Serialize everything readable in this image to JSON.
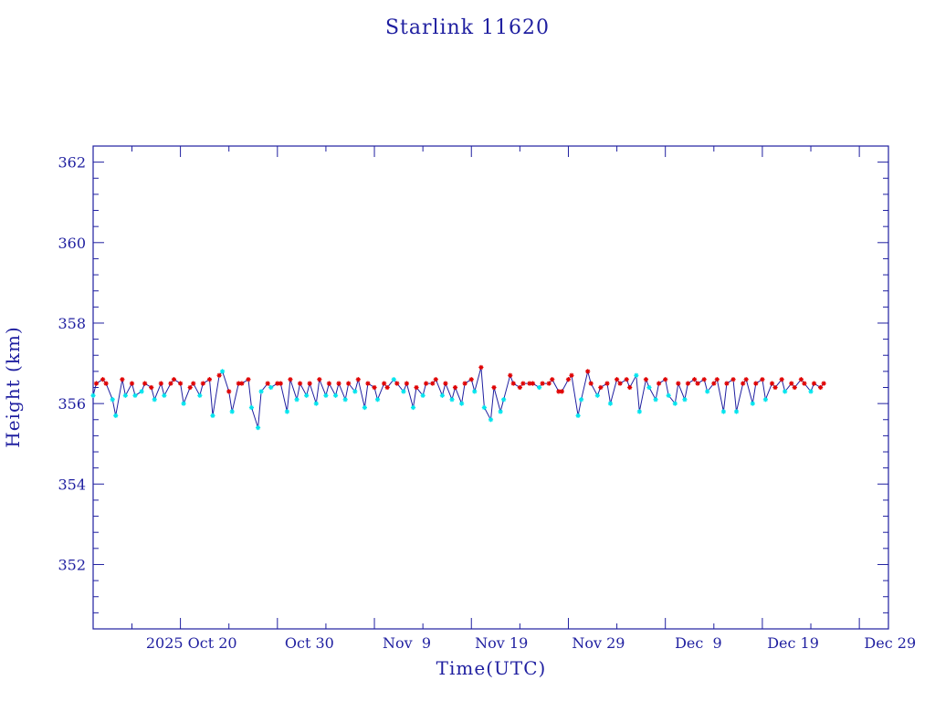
{
  "chart_data": {
    "type": "line",
    "title": "Starlink 11620",
    "xlabel": "Time(UTC)",
    "ylabel": "Height (km)",
    "x_ticks": [
      "2025 Oct 20",
      "Oct 30",
      "Nov  9",
      "Nov 19",
      "Nov 29",
      "Dec  9",
      "Dec 19",
      "Dec 29"
    ],
    "y_ticks": [
      "352",
      "354",
      "356",
      "358",
      "360",
      "362"
    ],
    "xlim": [
      "2025-10-11",
      "2026-01-01"
    ],
    "ylim": [
      350.4,
      362.4
    ],
    "colors": {
      "axis": "#1f1fa0",
      "line": "#1f1fa0",
      "red_marker": "#e00000",
      "cyan_marker": "#00e5ee"
    },
    "series": [
      {
        "marker": "star",
        "points": [
          [
            "2025-10-11",
            356.2,
            "cyan"
          ],
          [
            "2025-10-11",
            356.5,
            "red"
          ],
          [
            "2025-10-12",
            356.6,
            "red"
          ],
          [
            "2025-10-12",
            356.5,
            "red"
          ],
          [
            "2025-10-13",
            356.1,
            "cyan"
          ],
          [
            "2025-10-13",
            355.7,
            "cyan"
          ],
          [
            "2025-10-14",
            356.6,
            "red"
          ],
          [
            "2025-10-14",
            356.2,
            "cyan"
          ],
          [
            "2025-10-15",
            356.5,
            "red"
          ],
          [
            "2025-10-15",
            356.2,
            "cyan"
          ],
          [
            "2025-10-16",
            356.3,
            "cyan"
          ],
          [
            "2025-10-16",
            356.5,
            "red"
          ],
          [
            "2025-10-17",
            356.4,
            "red"
          ],
          [
            "2025-10-17",
            356.1,
            "cyan"
          ],
          [
            "2025-10-18",
            356.5,
            "red"
          ],
          [
            "2025-10-18",
            356.2,
            "cyan"
          ],
          [
            "2025-10-19",
            356.5,
            "red"
          ],
          [
            "2025-10-19",
            356.6,
            "red"
          ],
          [
            "2025-10-20",
            356.5,
            "red"
          ],
          [
            "2025-10-20",
            356.0,
            "cyan"
          ],
          [
            "2025-10-21",
            356.4,
            "red"
          ],
          [
            "2025-10-21",
            356.5,
            "red"
          ],
          [
            "2025-10-22",
            356.2,
            "cyan"
          ],
          [
            "2025-10-22",
            356.5,
            "red"
          ],
          [
            "2025-10-23",
            356.6,
            "red"
          ],
          [
            "2025-10-23",
            355.7,
            "cyan"
          ],
          [
            "2025-10-24",
            356.7,
            "red"
          ],
          [
            "2025-10-24",
            356.8,
            "cyan"
          ],
          [
            "2025-10-25",
            356.3,
            "red"
          ],
          [
            "2025-10-25",
            355.8,
            "cyan"
          ],
          [
            "2025-10-26",
            356.5,
            "red"
          ],
          [
            "2025-10-26",
            356.5,
            "red"
          ],
          [
            "2025-10-27",
            356.6,
            "red"
          ],
          [
            "2025-10-27",
            355.9,
            "cyan"
          ],
          [
            "2025-10-28",
            355.4,
            "cyan"
          ],
          [
            "2025-10-28",
            356.3,
            "cyan"
          ],
          [
            "2025-10-29",
            356.5,
            "red"
          ],
          [
            "2025-10-29",
            356.4,
            "cyan"
          ],
          [
            "2025-10-30",
            356.5,
            "red"
          ],
          [
            "2025-10-30",
            356.5,
            "red"
          ],
          [
            "2025-10-31",
            355.8,
            "cyan"
          ],
          [
            "2025-10-31",
            356.6,
            "red"
          ],
          [
            "2025-11-01",
            356.1,
            "cyan"
          ],
          [
            "2025-11-01",
            356.5,
            "red"
          ],
          [
            "2025-11-02",
            356.2,
            "cyan"
          ],
          [
            "2025-11-02",
            356.5,
            "red"
          ],
          [
            "2025-11-03",
            356.0,
            "cyan"
          ],
          [
            "2025-11-03",
            356.6,
            "red"
          ],
          [
            "2025-11-04",
            356.2,
            "cyan"
          ],
          [
            "2025-11-04",
            356.5,
            "red"
          ],
          [
            "2025-11-05",
            356.2,
            "cyan"
          ],
          [
            "2025-11-05",
            356.5,
            "red"
          ],
          [
            "2025-11-06",
            356.1,
            "cyan"
          ],
          [
            "2025-11-06",
            356.5,
            "red"
          ],
          [
            "2025-11-07",
            356.3,
            "cyan"
          ],
          [
            "2025-11-07",
            356.6,
            "red"
          ],
          [
            "2025-11-08",
            355.9,
            "cyan"
          ],
          [
            "2025-11-08",
            356.5,
            "red"
          ],
          [
            "2025-11-09",
            356.4,
            "red"
          ],
          [
            "2025-11-09",
            356.1,
            "cyan"
          ],
          [
            "2025-11-10",
            356.5,
            "red"
          ],
          [
            "2025-11-10",
            356.4,
            "red"
          ],
          [
            "2025-11-11",
            356.6,
            "cyan"
          ],
          [
            "2025-11-11",
            356.5,
            "red"
          ],
          [
            "2025-11-12",
            356.3,
            "cyan"
          ],
          [
            "2025-11-12",
            356.5,
            "red"
          ],
          [
            "2025-11-13",
            355.9,
            "cyan"
          ],
          [
            "2025-11-13",
            356.4,
            "red"
          ],
          [
            "2025-11-14",
            356.2,
            "cyan"
          ],
          [
            "2025-11-14",
            356.5,
            "red"
          ],
          [
            "2025-11-15",
            356.5,
            "red"
          ],
          [
            "2025-11-15",
            356.6,
            "red"
          ],
          [
            "2025-11-16",
            356.2,
            "cyan"
          ],
          [
            "2025-11-16",
            356.5,
            "red"
          ],
          [
            "2025-11-17",
            356.1,
            "cyan"
          ],
          [
            "2025-11-17",
            356.4,
            "red"
          ],
          [
            "2025-11-18",
            356.0,
            "cyan"
          ],
          [
            "2025-11-18",
            356.5,
            "red"
          ],
          [
            "2025-11-19",
            356.6,
            "red"
          ],
          [
            "2025-11-19",
            356.3,
            "cyan"
          ],
          [
            "2025-11-20",
            356.9,
            "red"
          ],
          [
            "2025-11-20",
            355.9,
            "cyan"
          ],
          [
            "2025-11-21",
            355.6,
            "cyan"
          ],
          [
            "2025-11-21",
            356.4,
            "red"
          ],
          [
            "2025-11-22",
            355.8,
            "cyan"
          ],
          [
            "2025-11-22",
            356.1,
            "cyan"
          ],
          [
            "2025-11-23",
            356.7,
            "red"
          ],
          [
            "2025-11-23",
            356.5,
            "red"
          ],
          [
            "2025-11-24",
            356.4,
            "red"
          ],
          [
            "2025-11-24",
            356.5,
            "red"
          ],
          [
            "2025-11-25",
            356.5,
            "red"
          ],
          [
            "2025-11-25",
            356.5,
            "red"
          ],
          [
            "2025-11-26",
            356.4,
            "cyan"
          ],
          [
            "2025-11-26",
            356.5,
            "red"
          ],
          [
            "2025-11-27",
            356.5,
            "red"
          ],
          [
            "2025-11-27",
            356.6,
            "red"
          ],
          [
            "2025-11-28",
            356.3,
            "red"
          ],
          [
            "2025-11-28",
            356.3,
            "red"
          ],
          [
            "2025-11-29",
            356.6,
            "red"
          ],
          [
            "2025-11-29",
            356.7,
            "red"
          ],
          [
            "2025-11-30",
            355.7,
            "cyan"
          ],
          [
            "2025-11-30",
            356.1,
            "cyan"
          ],
          [
            "2025-12-01",
            356.8,
            "red"
          ],
          [
            "2025-12-01",
            356.5,
            "red"
          ],
          [
            "2025-12-02",
            356.2,
            "cyan"
          ],
          [
            "2025-12-02",
            356.4,
            "red"
          ],
          [
            "2025-12-03",
            356.5,
            "red"
          ],
          [
            "2025-12-03",
            356.0,
            "cyan"
          ],
          [
            "2025-12-04",
            356.6,
            "red"
          ],
          [
            "2025-12-04",
            356.5,
            "red"
          ],
          [
            "2025-12-05",
            356.6,
            "red"
          ],
          [
            "2025-12-05",
            356.4,
            "red"
          ],
          [
            "2025-12-06",
            356.7,
            "cyan"
          ],
          [
            "2025-12-06",
            355.8,
            "cyan"
          ],
          [
            "2025-12-07",
            356.6,
            "red"
          ],
          [
            "2025-12-07",
            356.4,
            "cyan"
          ],
          [
            "2025-12-08",
            356.1,
            "cyan"
          ],
          [
            "2025-12-08",
            356.5,
            "red"
          ],
          [
            "2025-12-09",
            356.6,
            "red"
          ],
          [
            "2025-12-09",
            356.2,
            "cyan"
          ],
          [
            "2025-12-10",
            356.0,
            "cyan"
          ],
          [
            "2025-12-10",
            356.5,
            "red"
          ],
          [
            "2025-12-11",
            356.1,
            "cyan"
          ],
          [
            "2025-12-11",
            356.5,
            "red"
          ],
          [
            "2025-12-12",
            356.6,
            "red"
          ],
          [
            "2025-12-12",
            356.5,
            "red"
          ],
          [
            "2025-12-13",
            356.6,
            "red"
          ],
          [
            "2025-12-13",
            356.3,
            "cyan"
          ],
          [
            "2025-12-14",
            356.5,
            "red"
          ],
          [
            "2025-12-14",
            356.6,
            "red"
          ],
          [
            "2025-12-15",
            355.8,
            "cyan"
          ],
          [
            "2025-12-15",
            356.5,
            "red"
          ],
          [
            "2025-12-16",
            356.6,
            "red"
          ],
          [
            "2025-12-16",
            355.8,
            "cyan"
          ],
          [
            "2025-12-17",
            356.5,
            "red"
          ],
          [
            "2025-12-17",
            356.6,
            "red"
          ],
          [
            "2025-12-18",
            356.0,
            "cyan"
          ],
          [
            "2025-12-18",
            356.5,
            "red"
          ],
          [
            "2025-12-19",
            356.6,
            "red"
          ],
          [
            "2025-12-19",
            356.1,
            "cyan"
          ],
          [
            "2025-12-20",
            356.5,
            "red"
          ],
          [
            "2025-12-20",
            356.4,
            "red"
          ],
          [
            "2025-12-21",
            356.6,
            "red"
          ],
          [
            "2025-12-21",
            356.3,
            "cyan"
          ],
          [
            "2025-12-22",
            356.5,
            "red"
          ],
          [
            "2025-12-22",
            356.4,
            "red"
          ],
          [
            "2025-12-23",
            356.6,
            "red"
          ],
          [
            "2025-12-23",
            356.5,
            "red"
          ],
          [
            "2025-12-24",
            356.3,
            "cyan"
          ],
          [
            "2025-12-24",
            356.5,
            "red"
          ],
          [
            "2025-12-25",
            356.4,
            "red"
          ],
          [
            "2025-12-25",
            356.5,
            "red"
          ]
        ]
      }
    ]
  }
}
